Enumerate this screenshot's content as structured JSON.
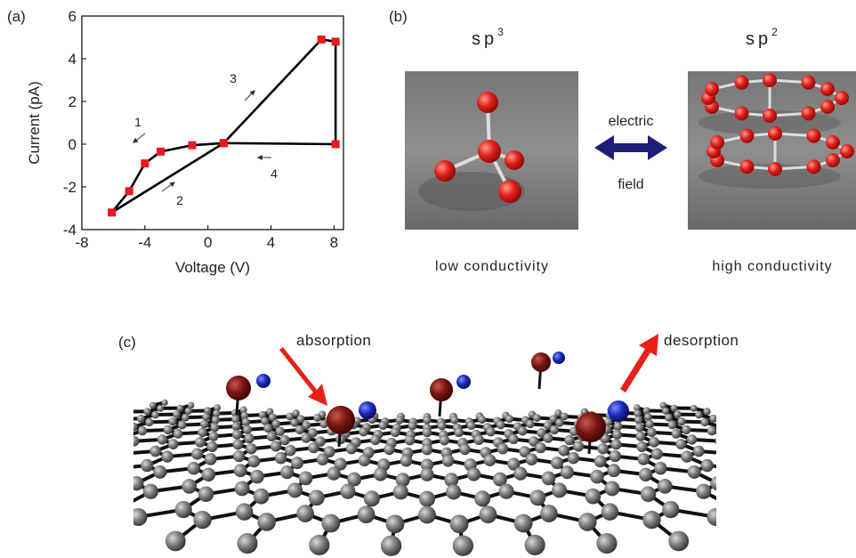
{
  "chart_data": {
    "type": "line",
    "panel_label": "(a)",
    "xlabel": "Voltage (V)",
    "ylabel": "Current (pA)",
    "xlim": [
      -8,
      8.6
    ],
    "ylim": [
      -4,
      6
    ],
    "xticks": [
      -8,
      -4,
      0,
      4,
      8
    ],
    "yticks": [
      -4,
      -2,
      0,
      2,
      4,
      6
    ],
    "series": [
      {
        "color": "#e8191f",
        "x": [
          1,
          -1,
          -3,
          -4,
          -5,
          -6.1,
          1,
          7.2,
          8.1,
          8.1,
          1
        ],
        "values": [
          0.05,
          -0.05,
          -0.35,
          -0.9,
          -2.2,
          -3.2,
          0.05,
          4.9,
          4.8,
          0,
          0.05
        ]
      }
    ],
    "annotations": [
      "1",
      "2",
      "3",
      "4"
    ]
  },
  "panel_b": {
    "label": "(b)",
    "left": {
      "base": "sp",
      "sup": "3",
      "caption": "low conductivity"
    },
    "right": {
      "base": "sp",
      "sup": "2",
      "caption": "high conductivity"
    },
    "arrow_top": "electric",
    "arrow_bottom": "field"
  },
  "panel_c": {
    "label": "(c)",
    "left_label": "absorption",
    "right_label": "desorption"
  }
}
